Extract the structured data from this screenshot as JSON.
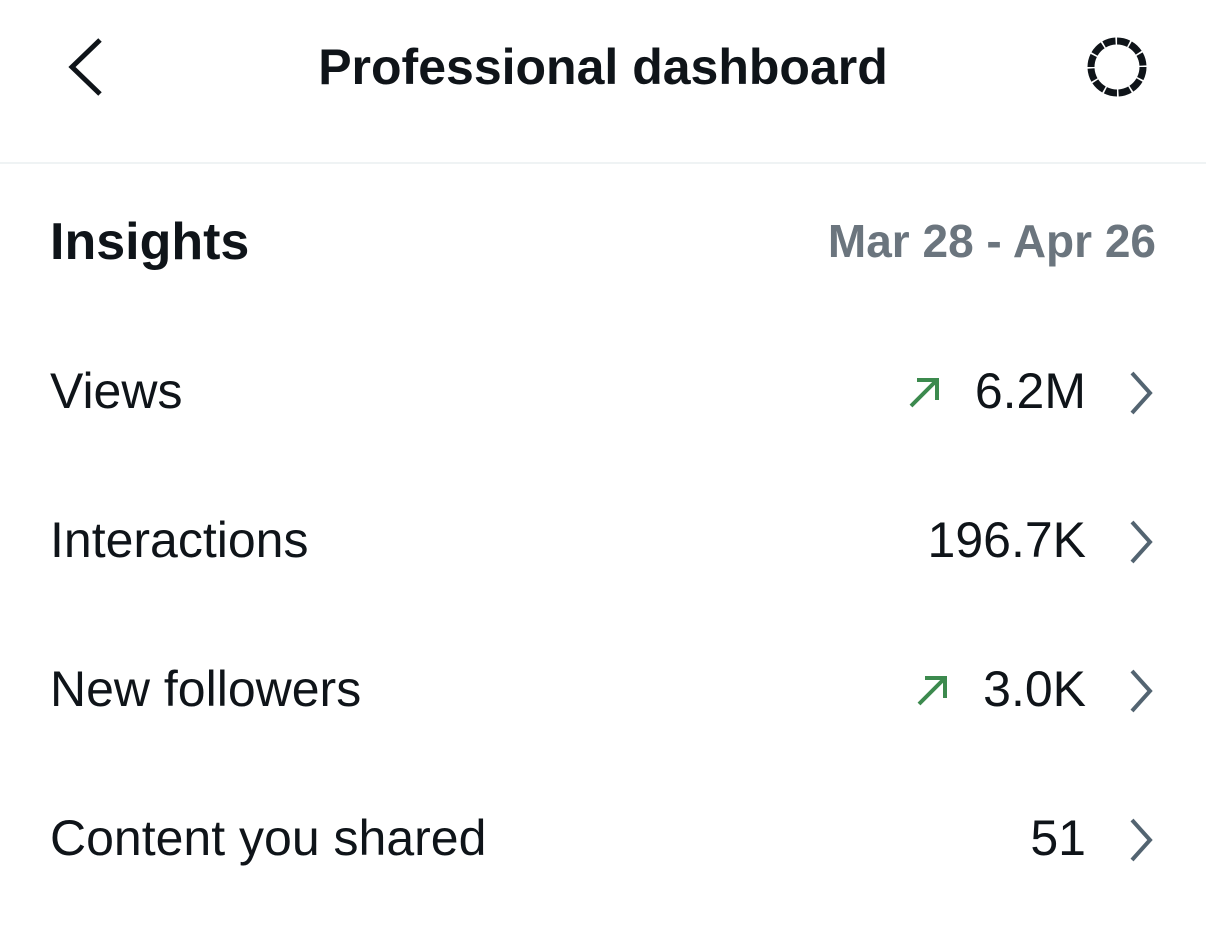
{
  "header": {
    "title": "Professional dashboard"
  },
  "section": {
    "title": "Insights",
    "range": "Mar 28 - Apr 26"
  },
  "rows": [
    {
      "label": "Views",
      "value": "6.2M",
      "trend": "up"
    },
    {
      "label": "Interactions",
      "value": "196.7K"
    },
    {
      "label": "New followers",
      "value": "3.0K",
      "trend": "up"
    },
    {
      "label": "Content you shared",
      "value": "51"
    }
  ]
}
